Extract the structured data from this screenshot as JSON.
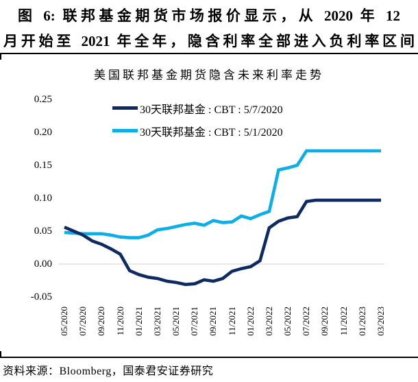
{
  "header": {
    "title_line1": "图 6:  联邦基金期货市场报价显示，从 2020 年 12",
    "title_line2": "月开始至 2021 年全年，隐含利率全部进入负利率区间"
  },
  "footer": {
    "source": "资料来源：Bloomberg，国泰君安证券研究"
  },
  "colors": {
    "series_navy": "#0d2a62",
    "series_cyan": "#0caee8",
    "zero_gridline": "#d9d9d9",
    "text": "#000000"
  },
  "chart_data": {
    "type": "line",
    "title": "美国联邦基金期货隐含未来利率走势",
    "xlabel": "",
    "ylabel": "",
    "ylim": [
      -0.05,
      0.25
    ],
    "yticks": [
      "0.25",
      "0.20",
      "0.15",
      "0.10",
      "0.05",
      "0.00",
      "-0.05"
    ],
    "grid": "horizontal zero line only",
    "legend_position": "upper-left-inside",
    "x_start": "05/2020",
    "x_end": "03/2023",
    "x_step": "1 month",
    "n_points": 35,
    "x_tick_labels": [
      "05/2020",
      "07/2020",
      "09/2020",
      "11/2020",
      "01/2021",
      "03/2021",
      "05/2021",
      "07/2021",
      "09/2021",
      "11/2021",
      "01/2022",
      "03/2022",
      "05/2022",
      "07/2022",
      "09/2022",
      "11/2022",
      "01/2023",
      "03/2023"
    ],
    "series": [
      {
        "name": "30天联邦基金 : CBT : 5/7/2020",
        "color": "#0d2a62",
        "values": [
          0.056,
          0.05,
          0.044,
          0.035,
          0.03,
          0.023,
          0.015,
          -0.01,
          -0.016,
          -0.02,
          -0.022,
          -0.026,
          -0.028,
          -0.031,
          -0.03,
          -0.024,
          -0.026,
          -0.022,
          -0.011,
          -0.007,
          -0.004,
          0.005,
          0.055,
          0.065,
          0.07,
          0.072,
          0.095,
          0.097,
          0.097,
          0.097,
          0.097,
          0.097,
          0.097,
          0.097,
          0.097
        ]
      },
      {
        "name": "30天联邦基金 : CBT : 5/1/2020",
        "color": "#0caee8",
        "values": [
          0.048,
          0.047,
          0.046,
          0.046,
          0.046,
          0.044,
          0.041,
          0.04,
          0.04,
          0.044,
          0.052,
          0.054,
          0.057,
          0.06,
          0.062,
          0.059,
          0.066,
          0.063,
          0.064,
          0.073,
          0.069,
          0.075,
          0.08,
          0.143,
          0.146,
          0.15,
          0.172,
          0.172,
          0.172,
          0.172,
          0.172,
          0.172,
          0.172,
          0.172,
          0.172
        ]
      }
    ]
  }
}
